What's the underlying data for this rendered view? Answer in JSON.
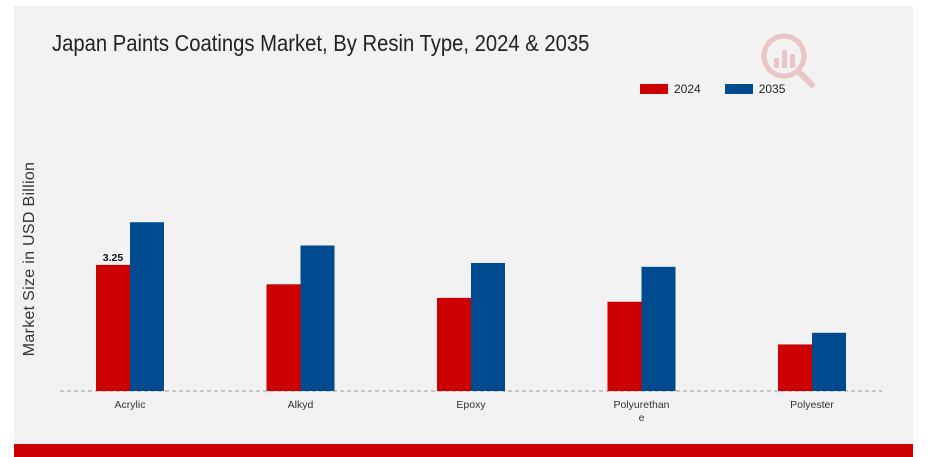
{
  "chart_data": {
    "type": "bar",
    "title": "Japan Paints Coatings Market, By Resin Type, 2024 & 2035",
    "ylabel": "Market Size in USD Billion",
    "xlabel": "",
    "categories": [
      "Acrylic",
      "Alkyd",
      "Epoxy",
      "Polyurethane",
      "Polyester"
    ],
    "category_labels": [
      [
        "Acrylic"
      ],
      [
        "Alkyd"
      ],
      [
        "Epoxy"
      ],
      [
        "Polyurethan",
        "e"
      ],
      [
        "Polyester"
      ]
    ],
    "series": [
      {
        "name": "2024",
        "color": "#cc0000",
        "values": [
          3.25,
          2.75,
          2.4,
          2.3,
          1.2
        ]
      },
      {
        "name": "2035",
        "color": "#004a8f",
        "values": [
          4.35,
          3.75,
          3.3,
          3.2,
          1.5
        ]
      }
    ],
    "data_labels": [
      {
        "series": 0,
        "index": 0,
        "text": "3.25"
      }
    ],
    "ylim": [
      0,
      7.5
    ],
    "grid": false,
    "legend_position": "top-right"
  }
}
